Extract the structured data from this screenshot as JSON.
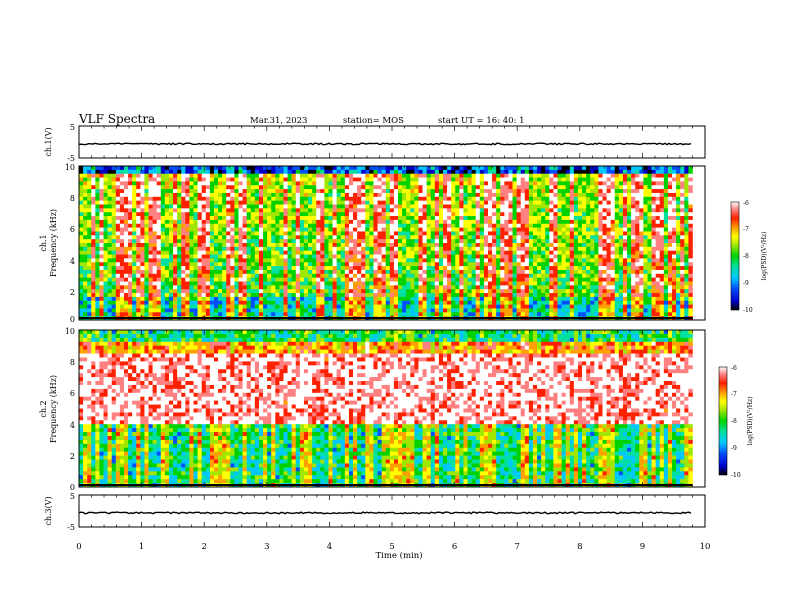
{
  "header": {
    "title": "VLF Spectra",
    "date": "Mar.31, 2023",
    "station": "station= MOS",
    "start_ut": "start UT =  16: 40: 1"
  },
  "chart_data": [
    {
      "type": "line",
      "panel": "ch1-waveform",
      "ylabel": "ch.1(V)",
      "ylim": [
        -5,
        5
      ],
      "yticks": [
        "5",
        "-5"
      ],
      "xlim": [
        0,
        10
      ],
      "series": [
        {
          "approx_level": -0.6
        }
      ]
    },
    {
      "type": "heatmap",
      "panel": "ch1-spectrogram",
      "ylabel": "ch.1 Frequency (kHz)",
      "ylabel_lines": [
        "ch.1",
        "Frequency (kHz)"
      ],
      "ylim": [
        0,
        10
      ],
      "yticks": [
        "0",
        "2",
        "4",
        "6",
        "8",
        "10"
      ],
      "xlim": [
        0,
        9.8
      ],
      "colorbar": {
        "label": "log(PSD)(V²/Hz)",
        "range": [
          -10,
          -6
        ],
        "ticks": [
          "-6",
          "-7",
          "-8",
          "-9",
          "-10"
        ]
      }
    },
    {
      "type": "heatmap",
      "panel": "ch2-spectrogram",
      "ylabel": "ch.2 Frequency (kHz)",
      "ylabel_lines": [
        "ch.2",
        "Frequency (kHz)"
      ],
      "ylim": [
        0,
        10
      ],
      "yticks": [
        "0",
        "2",
        "4",
        "6",
        "8",
        "10"
      ],
      "xlim": [
        0,
        9.8
      ],
      "colorbar": {
        "label": "log(PSD)(V²/Hz)",
        "range": [
          -10,
          -6
        ],
        "ticks": [
          "-6",
          "-7",
          "-8",
          "-9",
          "-10"
        ]
      }
    },
    {
      "type": "line",
      "panel": "ch3-waveform",
      "ylabel": "ch.3(V)",
      "ylim": [
        -5,
        5
      ],
      "yticks": [
        "5",
        "-5"
      ],
      "xlim": [
        0,
        10
      ],
      "xlabel": "Time  (min)",
      "xticks": [
        "0",
        "1",
        "2",
        "3",
        "4",
        "5",
        "6",
        "7",
        "8",
        "9",
        "10"
      ],
      "series": [
        {
          "approx_level": -0.6
        }
      ]
    }
  ],
  "colors": {
    "colormap": [
      "#000000",
      "#0000c8",
      "#0050ff",
      "#00c8ff",
      "#00e0a0",
      "#00d200",
      "#a0e600",
      "#ffff00",
      "#ffa000",
      "#ff2000",
      "#ff8080",
      "#ffffff"
    ]
  }
}
